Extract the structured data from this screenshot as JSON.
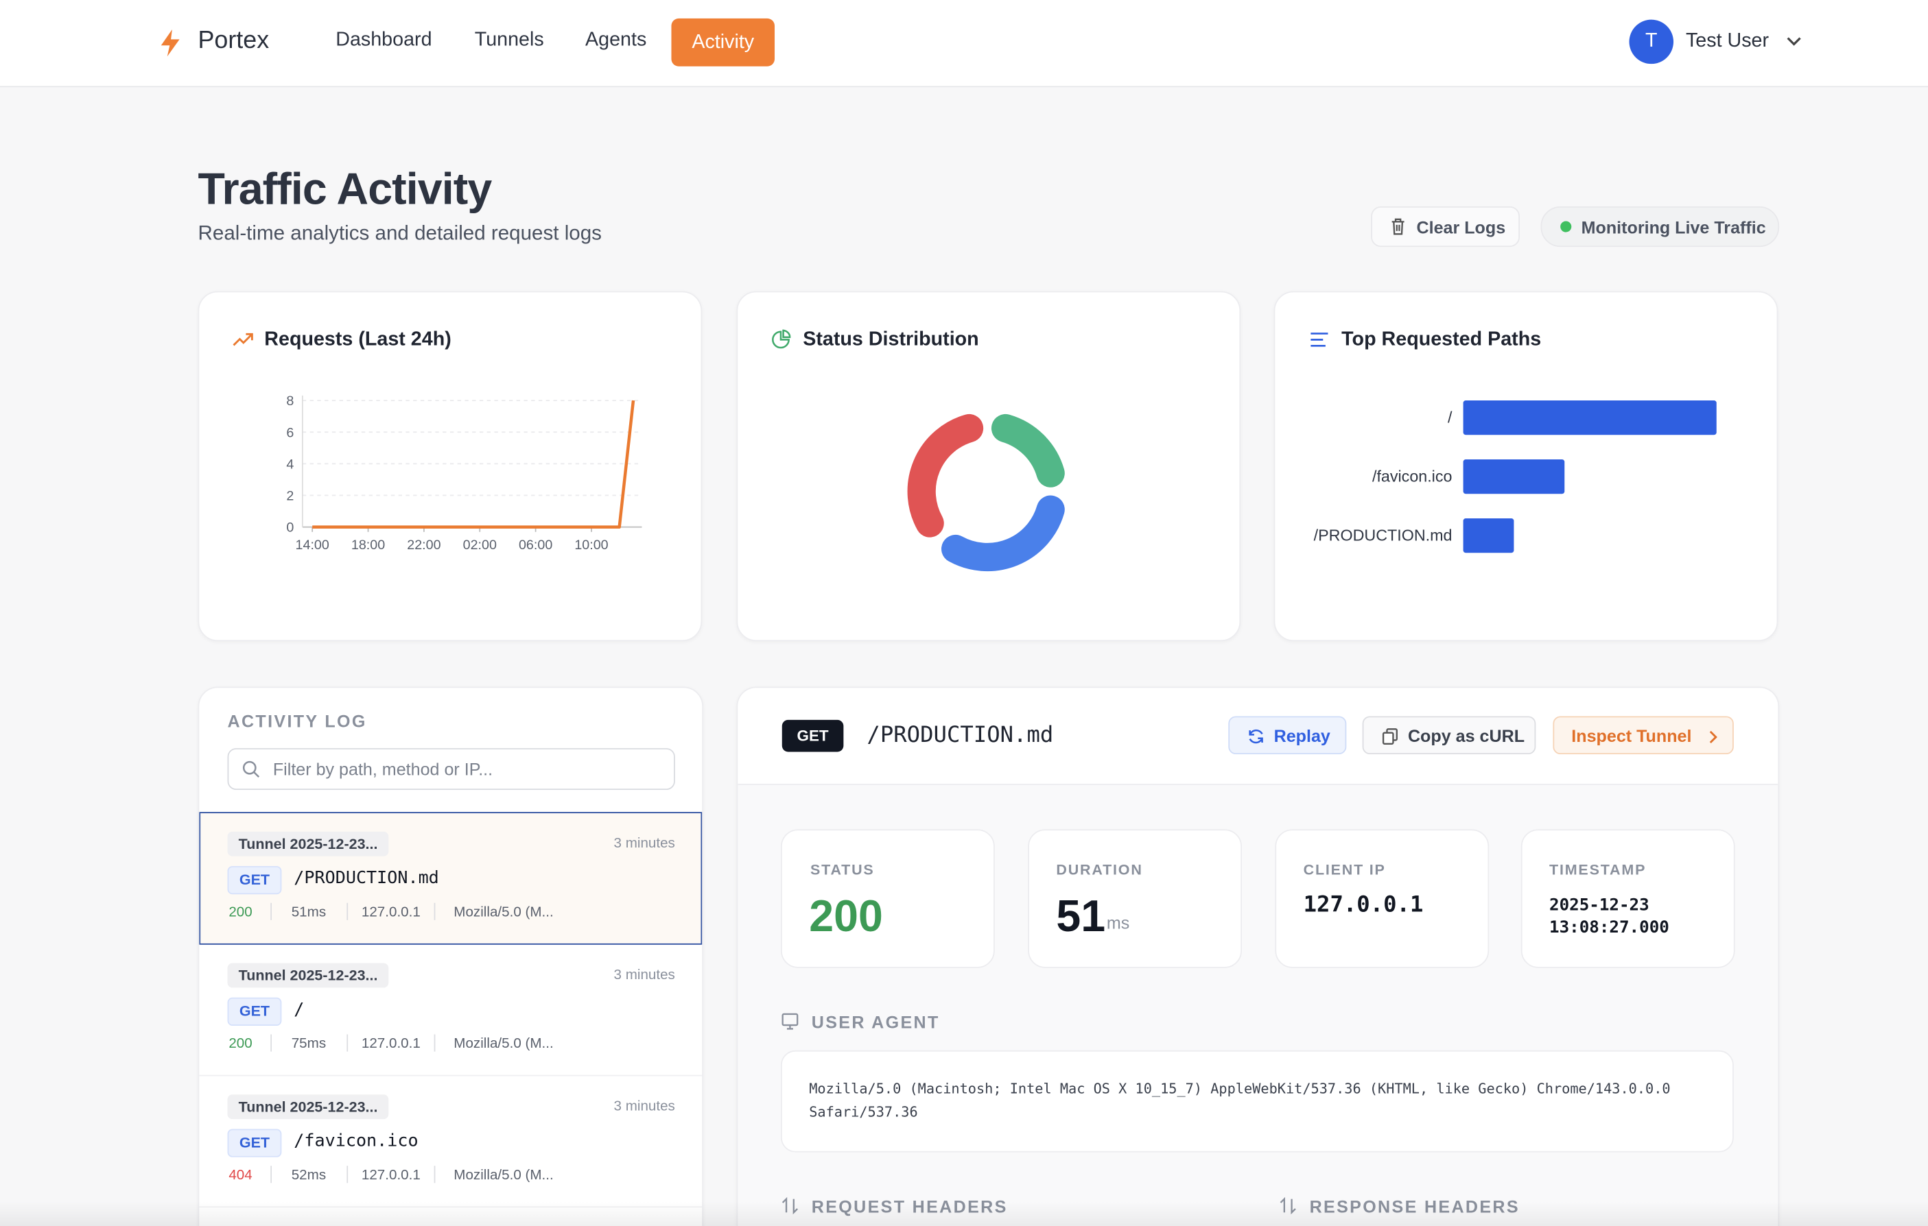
{
  "nav": {
    "brand": "Portex",
    "links": [
      "Dashboard",
      "Tunnels",
      "Agents",
      "Activity"
    ]
  },
  "user": {
    "initial": "T",
    "name": "Test User"
  },
  "header": {
    "title": "Traffic Activity",
    "subtitle": "Real-time analytics and detailed request logs",
    "clear_button": "Clear Logs",
    "status": "Monitoring Live Traffic"
  },
  "chart_data": [
    {
      "type": "line",
      "title": "Requests (Last 24h)",
      "categories": [
        "14:00",
        null,
        null,
        null,
        "18:00",
        null,
        null,
        null,
        "22:00",
        null,
        null,
        null,
        "02:00",
        null,
        null,
        null,
        "06:00",
        null,
        null,
        null,
        "10:00",
        null,
        null,
        null
      ],
      "values": [
        0,
        0,
        0,
        0,
        0,
        0,
        0,
        0,
        0,
        0,
        0,
        0,
        0,
        0,
        0,
        0,
        0,
        0,
        0,
        0,
        0,
        0,
        0,
        8
      ],
      "color": "#ea7a30",
      "ylim": [
        0,
        8
      ],
      "yticks": [
        0,
        2,
        4,
        6,
        8
      ],
      "grid": true
    },
    {
      "type": "pie",
      "title": "Status Distribution",
      "values": [
        2,
        3,
        3
      ],
      "colors": [
        "#52b788",
        "#4a80ea",
        "#e05454"
      ]
    },
    {
      "type": "bar",
      "title": "Top Requested Paths",
      "orientation": "horizontal",
      "categories": [
        "/",
        "/favicon.ico",
        "/PRODUCTION.md"
      ],
      "values": [
        5,
        2,
        1
      ],
      "color": "#2f5fe0"
    }
  ],
  "activity_log": {
    "title": "ACTIVITY LOG",
    "search_placeholder": "Filter by path, method or IP...",
    "entries": [
      {
        "tunnel": "Tunnel 2025-12-23...",
        "time": "3 minutes",
        "method": "GET",
        "path": "/PRODUCTION.md",
        "status": "200",
        "duration": "51ms",
        "ip": "127.0.0.1",
        "agent": "Mozilla/5.0 (M..."
      },
      {
        "tunnel": "Tunnel 2025-12-23...",
        "time": "3 minutes",
        "method": "GET",
        "path": "/",
        "status": "200",
        "duration": "75ms",
        "ip": "127.0.0.1",
        "agent": "Mozilla/5.0 (M..."
      },
      {
        "tunnel": "Tunnel 2025-12-23...",
        "time": "3 minutes",
        "method": "GET",
        "path": "/favicon.ico",
        "status": "404",
        "duration": "52ms",
        "ip": "127.0.0.1",
        "agent": "Mozilla/5.0 (M..."
      }
    ]
  },
  "detail": {
    "method": "GET",
    "path": "/PRODUCTION.md",
    "buttons": {
      "replay": "Replay",
      "copy": "Copy as cURL",
      "inspect": "Inspect Tunnel"
    },
    "stats": {
      "status_label": "STATUS",
      "status": "200",
      "duration_label": "DURATION",
      "duration": "51",
      "duration_unit": "ms",
      "ip_label": "CLIENT IP",
      "ip": "127.0.0.1",
      "timestamp_label": "TIMESTAMP",
      "timestamp_date": "2025-12-23",
      "timestamp_time": "13:08:27.000"
    },
    "user_agent_label": "USER AGENT",
    "user_agent_lines": [
      "Mozilla/5.0 (Macintosh; Intel Mac OS X 10_15_7) AppleWebKit/537.36 (KHTML, like Gecko) Chrome/143.0.0.0",
      "Safari/537.36"
    ],
    "request_headers_label": "REQUEST HEADERS",
    "response_headers_label": "RESPONSE HEADERS"
  }
}
